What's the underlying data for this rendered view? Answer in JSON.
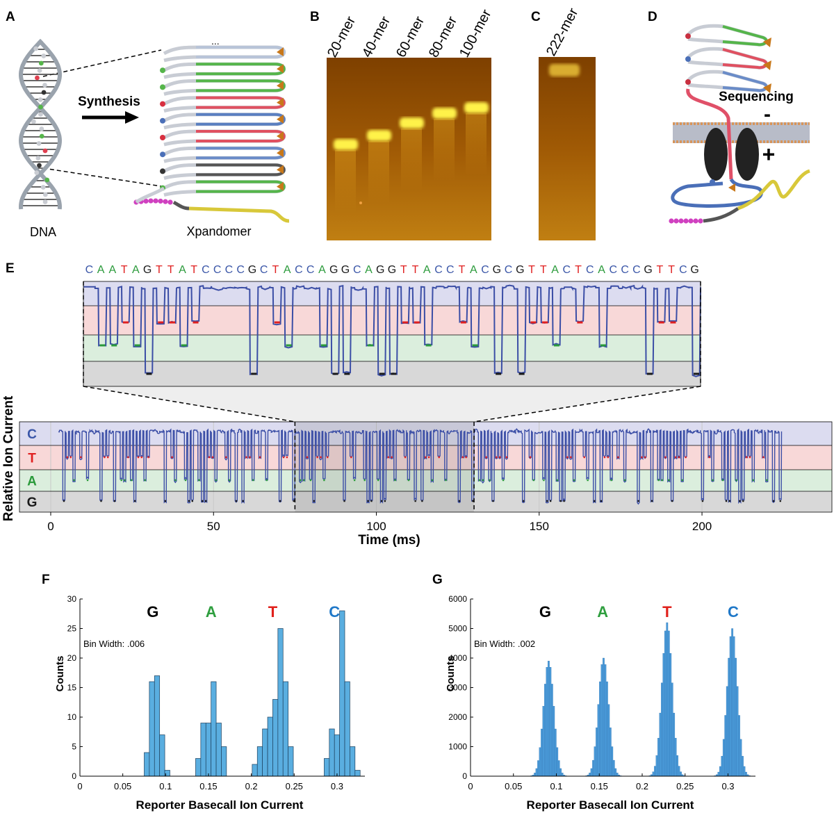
{
  "panel_labels": [
    "A",
    "B",
    "C",
    "D",
    "E",
    "F",
    "G"
  ],
  "panel_a": {
    "arrow_label": "Synthesis",
    "left_label": "DNA",
    "right_label": "Xpandomer",
    "ellipsis": "..."
  },
  "panel_b": {
    "lanes": [
      "20-mer",
      "40-mer",
      "60-mer",
      "80-mer",
      "100-mer"
    ]
  },
  "panel_c": {
    "lanes": [
      "222-mer"
    ]
  },
  "panel_d": {
    "label": "Sequencing",
    "minus": "-",
    "plus": "+"
  },
  "chart_data": [
    {
      "type": "trace",
      "sequence": [
        "C",
        "A",
        "A",
        "T",
        "A",
        "G",
        "T",
        "T",
        "A",
        "T",
        "C",
        "C",
        "C",
        "C",
        "G",
        "C",
        "T",
        "A",
        "C",
        "C",
        "A",
        "G",
        "G",
        "C",
        "A",
        "G",
        "G",
        "T",
        "T",
        "A",
        "C",
        "C",
        "T",
        "A",
        "C",
        "G",
        "C",
        "G",
        "T",
        "T",
        "A",
        "C",
        "T",
        "C",
        "A",
        "C",
        "C",
        "C",
        "G",
        "T",
        "T",
        "C",
        "G"
      ],
      "levels": [
        {
          "name": "C",
          "color": "#3b57a8",
          "band": "#dcdcf0"
        },
        {
          "name": "T",
          "color": "#e02020",
          "band": "#f8d8d8"
        },
        {
          "name": "A",
          "color": "#2a9a3a",
          "band": "#dbeedd"
        },
        {
          "name": "G",
          "color": "#1a1a1a",
          "band": "#d8d8d8"
        }
      ],
      "trace_color": "#3b4ea6",
      "xlim": [
        -9.6,
        239.9
      ],
      "xticks": [
        0,
        50,
        100,
        150,
        200
      ],
      "zoom_range": [
        75,
        130
      ],
      "xlabel": "Time (ms)",
      "ylabel": "Relative Ion Current"
    },
    {
      "type": "histogram",
      "color": "#5aaee0",
      "edge_color": "#1d3f5c",
      "annotation": "Bin Width: .006",
      "letters": [
        {
          "text": "G",
          "x": 0.085,
          "color": "#000000"
        },
        {
          "text": "A",
          "x": 0.153,
          "color": "#2e9e3e"
        },
        {
          "text": "T",
          "x": 0.225,
          "color": "#e0201b"
        },
        {
          "text": "C",
          "x": 0.297,
          "color": "#1f78c8"
        }
      ],
      "bins": [
        0.075,
        0.081,
        0.087,
        0.093,
        0.099,
        0.105,
        0.111,
        0.117,
        0.123,
        0.129,
        0.135,
        0.141,
        0.147,
        0.153,
        0.159,
        0.165,
        0.171,
        0.177,
        0.183,
        0.189,
        0.195,
        0.201,
        0.207,
        0.213,
        0.219,
        0.225,
        0.231,
        0.237,
        0.243,
        0.249,
        0.255,
        0.261,
        0.267,
        0.273,
        0.279,
        0.285,
        0.291,
        0.297,
        0.303,
        0.309,
        0.315,
        0.321,
        0.327
      ],
      "values": [
        4,
        16,
        17,
        7,
        1,
        0,
        0,
        0,
        0,
        0,
        3,
        9,
        9,
        16,
        9,
        5,
        0,
        0,
        0,
        0,
        0,
        2,
        5,
        8,
        10,
        13,
        25,
        16,
        5,
        0,
        0,
        0,
        0,
        0,
        0,
        3,
        8,
        7,
        28,
        16,
        5,
        1
      ],
      "xlim": [
        0,
        0.3325
      ],
      "xticks": [
        0,
        0.05,
        0.1,
        0.15,
        0.2,
        0.25,
        0.3
      ],
      "ylim": [
        0,
        30
      ],
      "yticks": [
        0,
        5,
        10,
        15,
        20,
        25,
        30
      ],
      "xlabel": "Reporter Basecall Ion Current",
      "ylabel": "Counts"
    },
    {
      "type": "histogram",
      "color": "#4a9ad8",
      "edge_color": "#2a6fb0",
      "annotation": "Bin Width: .002",
      "letters": [
        {
          "text": "G",
          "x": 0.087,
          "color": "#000000"
        },
        {
          "text": "A",
          "x": 0.154,
          "color": "#2e9e3e"
        },
        {
          "text": "T",
          "x": 0.229,
          "color": "#e0201b"
        },
        {
          "text": "C",
          "x": 0.306,
          "color": "#1f78c8"
        }
      ],
      "bins": [
        0.07,
        0.072,
        0.074,
        0.076,
        0.078,
        0.08,
        0.082,
        0.084,
        0.086,
        0.088,
        0.09,
        0.092,
        0.094,
        0.096,
        0.098,
        0.1,
        0.102,
        0.104,
        0.106,
        0.108,
        0.11,
        0.112,
        0.114,
        0.116,
        0.118,
        0.12,
        0.122,
        0.124,
        0.126,
        0.128,
        0.13,
        0.132,
        0.134,
        0.136,
        0.138,
        0.14,
        0.142,
        0.144,
        0.146,
        0.148,
        0.15,
        0.152,
        0.154,
        0.156,
        0.158,
        0.16,
        0.162,
        0.164,
        0.166,
        0.168,
        0.17,
        0.172,
        0.174,
        0.176,
        0.178,
        0.18,
        0.182,
        0.184,
        0.186,
        0.188,
        0.19,
        0.192,
        0.194,
        0.196,
        0.198,
        0.2,
        0.202,
        0.204,
        0.206,
        0.208,
        0.21,
        0.212,
        0.214,
        0.216,
        0.218,
        0.22,
        0.222,
        0.224,
        0.226,
        0.228,
        0.23,
        0.232,
        0.234,
        0.236,
        0.238,
        0.24,
        0.242,
        0.244,
        0.246,
        0.248,
        0.25,
        0.252,
        0.254,
        0.256,
        0.258,
        0.26,
        0.262,
        0.264,
        0.266,
        0.268,
        0.27,
        0.272,
        0.274,
        0.276,
        0.278,
        0.28,
        0.282,
        0.284,
        0.286,
        0.288,
        0.29,
        0.292,
        0.294,
        0.296,
        0.298,
        0.3,
        0.302,
        0.304,
        0.306,
        0.308,
        0.31,
        0.312,
        0.314,
        0.316,
        0.318,
        0.32,
        0.322,
        0.324,
        0.326
      ],
      "values": [
        15,
        40,
        110,
        260,
        530,
        970,
        1600,
        2370,
        3120,
        3690,
        3900,
        3690,
        3120,
        2370,
        1600,
        970,
        530,
        260,
        110,
        40,
        15,
        0,
        0,
        0,
        0,
        0,
        0,
        0,
        0,
        0,
        0,
        0,
        15,
        45,
        110,
        260,
        540,
        1000,
        1640,
        2430,
        3200,
        3780,
        4000,
        3780,
        3200,
        2430,
        1640,
        1000,
        540,
        260,
        110,
        45,
        15,
        0,
        0,
        0,
        0,
        0,
        0,
        0,
        0,
        0,
        0,
        0,
        0,
        0,
        0,
        0,
        0,
        20,
        55,
        150,
        340,
        700,
        1290,
        2140,
        3160,
        4160,
        4920,
        5200,
        4920,
        4160,
        3160,
        2140,
        1290,
        700,
        340,
        150,
        55,
        20,
        0,
        0,
        0,
        0,
        0,
        0,
        0,
        0,
        0,
        0,
        0,
        0,
        0,
        0,
        0,
        0,
        0,
        20,
        55,
        140,
        330,
        680,
        1250,
        2060,
        3040,
        4000,
        4730,
        5000,
        4730,
        4000,
        3040,
        2060,
        1250,
        680,
        330,
        140,
        55,
        20
      ],
      "xlim": [
        0,
        0.332
      ],
      "xticks": [
        0,
        0.05,
        0.1,
        0.15,
        0.2,
        0.25,
        0.3
      ],
      "ylim": [
        0,
        6000
      ],
      "yticks": [
        0,
        1000,
        2000,
        3000,
        4000,
        5000,
        6000
      ],
      "xlabel": "Reporter Basecall Ion Current",
      "ylabel": "Counts"
    }
  ]
}
